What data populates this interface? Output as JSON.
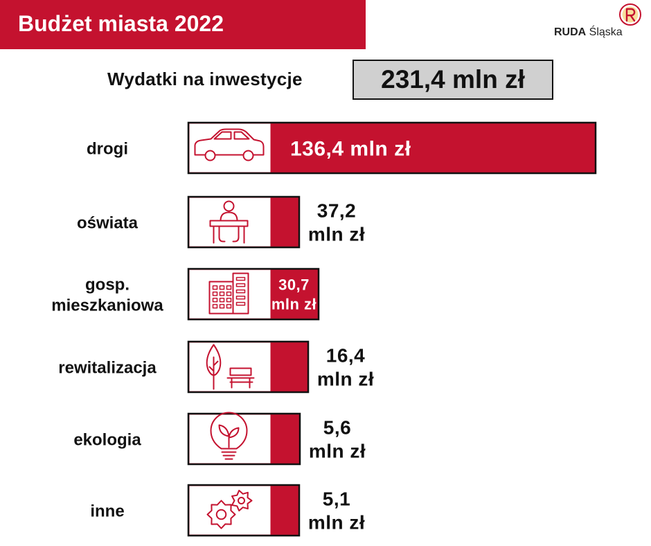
{
  "header": {
    "title": "Budżet miasta 2022"
  },
  "logo": {
    "name_bold": "RUDA",
    "name_rest": "Śląska"
  },
  "total": {
    "label": "Wydatki na inwestycje",
    "value": "231,4 mln zł"
  },
  "colors": {
    "accent": "#c4122f",
    "total_box": "#d0d0d0",
    "icon_bg": "#ffffff",
    "text": "#111111"
  },
  "chart_data": {
    "type": "bar",
    "orientation": "horizontal",
    "unit": "mln zł",
    "categories": [
      {
        "label": [
          "drogi"
        ],
        "value": 136.4,
        "value_text": [
          "136,4 mln zł"
        ],
        "icon": "car-icon"
      },
      {
        "label": [
          "oświata"
        ],
        "value": 37.2,
        "value_text": [
          "37,2",
          "mln zł"
        ],
        "icon": "student-desk-icon"
      },
      {
        "label": [
          "gosp.",
          "mieszkaniowa"
        ],
        "value": 30.7,
        "value_text": [
          "30,7",
          "mln zł"
        ],
        "icon": "apartment-buildings-icon"
      },
      {
        "label": [
          "rewitalizacja"
        ],
        "value": 16.4,
        "value_text": [
          "16,4",
          "mln zł"
        ],
        "icon": "tree-bench-icon"
      },
      {
        "label": [
          "ekologia"
        ],
        "value": 5.6,
        "value_text": [
          "5,6",
          "mln zł"
        ],
        "icon": "eco-lightbulb-icon"
      },
      {
        "label": [
          "inne"
        ],
        "value": 5.1,
        "value_text": [
          "5,1",
          "mln zł"
        ],
        "icon": "gears-icon"
      }
    ]
  }
}
